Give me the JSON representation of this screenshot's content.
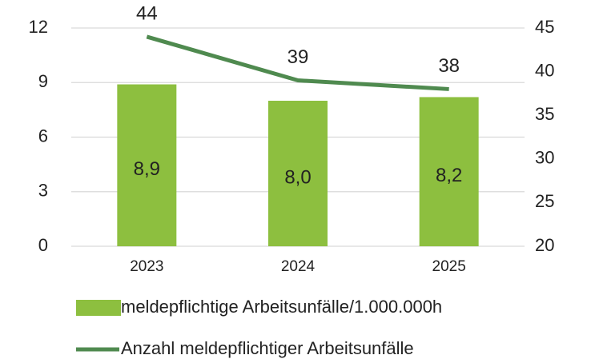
{
  "chart_data": {
    "type": "bar",
    "categories": [
      "2023",
      "2024",
      "2025"
    ],
    "series": [
      {
        "name": "meldepflichtige Arbeitsunfälle/1.000.000h",
        "type": "bar",
        "color": "#8dbf3f",
        "values": [
          8.9,
          8.0,
          8.2
        ],
        "value_labels": [
          "8,9",
          "8,0",
          "8,2"
        ]
      },
      {
        "name": "Anzahl meldepflichtiger Arbeitsunfälle",
        "type": "line",
        "axis": "y2",
        "color": "#4f8a4f",
        "values": [
          44,
          39,
          38
        ]
      }
    ],
    "ylim": [
      0,
      12
    ],
    "yticks": [
      0,
      3,
      6,
      9,
      12
    ],
    "y2lim": [
      20,
      45
    ],
    "y2ticks": [
      20,
      25,
      30,
      35,
      40,
      45
    ],
    "grid": true
  }
}
